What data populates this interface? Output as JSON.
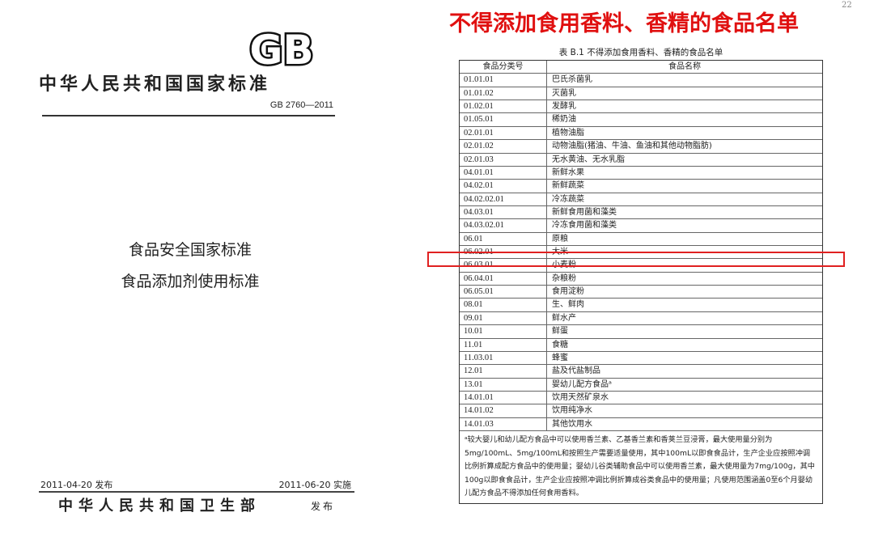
{
  "cover": {
    "logo_text": "GB",
    "country_standard": "中华人民共和国国家标准",
    "code": "GB 2760—2011",
    "title_line1": "食品安全国家标准",
    "title_line2": "食品添加剂使用标准",
    "release_date": "2011-04-20 发布",
    "effective_date": "2011-06-20 实施",
    "issuer": "中华人民共和国卫生部",
    "issue_label": "发布"
  },
  "table_page": {
    "headline": "不得添加食用香料、香精的食品名单",
    "page_number": "22",
    "caption": "表 B.1  不得添加食用香料、香精的食品名单",
    "highlight_color": "#e02020",
    "headers": [
      "食品分类号",
      "食品名称"
    ],
    "rows": [
      [
        "01.01.01",
        "巴氏杀菌乳"
      ],
      [
        "01.01.02",
        "灭菌乳"
      ],
      [
        "01.02.01",
        "发酵乳"
      ],
      [
        "01.05.01",
        "稀奶油"
      ],
      [
        "02.01.01",
        "植物油脂"
      ],
      [
        "02.01.02",
        "动物油脂(猪油、牛油、鱼油和其他动物脂肪)"
      ],
      [
        "02.01.03",
        "无水黄油、无水乳脂"
      ],
      [
        "04.01.01",
        "新鲜水果"
      ],
      [
        "04.02.01",
        "新鲜蔬菜"
      ],
      [
        "04.02.02.01",
        "冷冻蔬菜"
      ],
      [
        "04.03.01",
        "新鲜食用菌和藻类"
      ],
      [
        "04.03.02.01",
        "冷冻食用菌和藻类"
      ],
      [
        "06.01",
        "原粮"
      ],
      [
        "06.02.01",
        "大米"
      ],
      [
        "06.03.01",
        "小麦粉"
      ],
      [
        "06.04.01",
        "杂粮粉"
      ],
      [
        "06.05.01",
        "食用淀粉"
      ],
      [
        "08.01",
        "生、鲜肉"
      ],
      [
        "09.01",
        "鲜水产"
      ],
      [
        "10.01",
        "鲜蛋"
      ],
      [
        "11.01",
        "食糖"
      ],
      [
        "11.03.01",
        "蜂蜜"
      ],
      [
        "12.01",
        "盐及代盐制品"
      ],
      [
        "13.01",
        "婴幼儿配方食品ᵃ"
      ],
      [
        "14.01.01",
        "饮用天然矿泉水"
      ],
      [
        "14.01.02",
        "饮用纯净水"
      ],
      [
        "14.01.03",
        "其他饮用水"
      ]
    ],
    "highlighted_row": "06.02.01",
    "footnote": "ᵃ较大婴儿和幼儿配方食品中可以使用香兰素、乙基香兰素和香荚兰豆浸膏，最大使用量分别为5mg/100mL、5mg/100mL和按照生产需要适量使用，其中100mL以即食食品计，生产企业应按照冲调比例折算成配方食品中的使用量；婴幼儿谷类辅助食品中可以使用香兰素，最大使用量为7mg/100g，其中100g以即食食品计，生产企业应按照冲调比例折算成谷类食品中的使用量；凡使用范围涵盖0至6个月婴幼儿配方食品不得添加任何食用香料。"
  }
}
